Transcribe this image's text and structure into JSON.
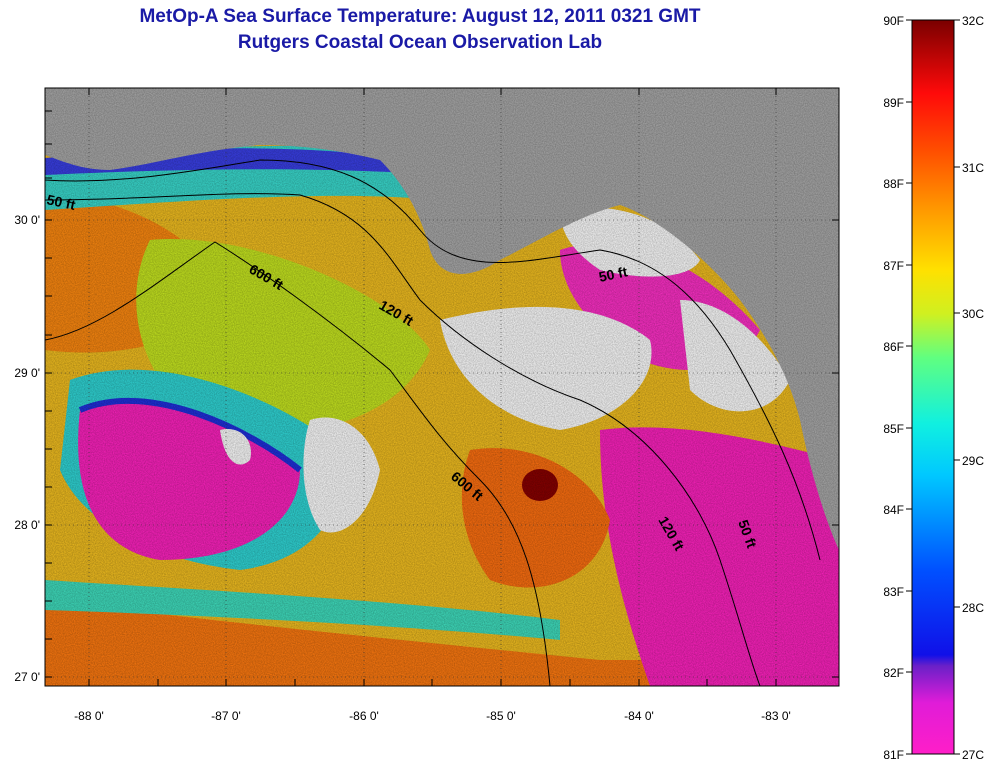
{
  "title": "MetOp-A Sea Surface Temperature:  August 12, 2011 0321 GMT",
  "subtitle": "Rutgers Coastal Ocean Observation Lab",
  "x_ticks": [
    "-88 0'",
    "-87 0'",
    "-86 0'",
    "-85 0'",
    "-84 0'",
    "-83 0'"
  ],
  "y_ticks": [
    "30 0'",
    "29 0'",
    "28 0'",
    "27 0'"
  ],
  "contour_labels": [
    "50 ft",
    "600 ft",
    "120 ft",
    "50 ft",
    "600 ft",
    "120 ft",
    "50 ft"
  ],
  "colorbar": {
    "f_labels": [
      "90F",
      "89F",
      "88F",
      "87F",
      "86F",
      "85F",
      "84F",
      "83F",
      "82F",
      "81F"
    ],
    "c_labels": [
      "32C",
      "31C",
      "30C",
      "29C",
      "28C",
      "27C"
    ]
  },
  "colors": {
    "land": "#aaaaaa",
    "cloud": "#ffffff",
    "title": "#1a1aa6"
  }
}
